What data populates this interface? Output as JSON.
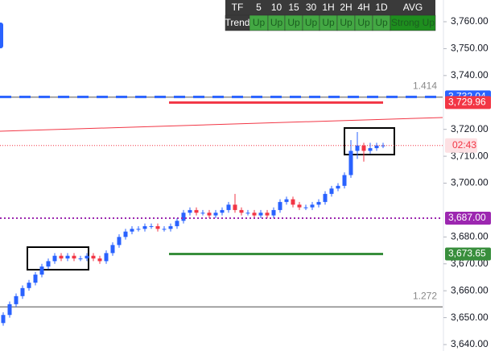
{
  "chart_data": {
    "type": "candlestick",
    "up_color": "#2962ff",
    "down_color": "#f23645",
    "ylim": [
      3640,
      3760
    ],
    "yticks": [
      {
        "value": 3760,
        "label": "3,760.00"
      },
      {
        "value": 3750,
        "label": "3,750.00"
      },
      {
        "value": 3740,
        "label": "3,740.00"
      },
      {
        "value": 3720,
        "label": "3,720.00"
      },
      {
        "value": 3710,
        "label": "3,710.00"
      },
      {
        "value": 3700,
        "label": "3,700.00"
      },
      {
        "value": 3680,
        "label": "3,680.00"
      },
      {
        "value": 3670,
        "label": "3,670.00"
      },
      {
        "value": 3660,
        "label": "3,660.00"
      },
      {
        "value": 3650,
        "label": "3,650.00"
      },
      {
        "value": 3640,
        "label": "3,640.00"
      }
    ],
    "open": [
      3648,
      3651,
      3655,
      3658,
      3661,
      3663,
      3666,
      3669,
      3671,
      3673,
      3672,
      3673,
      3672,
      3672,
      3673,
      3672,
      3671,
      3674,
      3677,
      3680,
      3682,
      3683,
      3683,
      3684,
      3684,
      3683,
      3683,
      3684,
      3686,
      3689,
      3690,
      3689,
      3689,
      3688,
      3689,
      3690,
      3692,
      3690,
      3689,
      3689,
      3688,
      3689,
      3688,
      3690,
      3693,
      3694,
      3692,
      3691,
      3691,
      3692,
      3693,
      3696,
      3698,
      3699,
      3703,
      3712,
      3714,
      3712,
      3713,
      3714
    ],
    "high": [
      3652,
      3656,
      3659,
      3662,
      3664,
      3667,
      3670,
      3672,
      3674,
      3674,
      3674,
      3674,
      3673,
      3674,
      3674,
      3673,
      3675,
      3678,
      3681,
      3683,
      3684,
      3684,
      3685,
      3685,
      3685,
      3684,
      3685,
      3687,
      3690,
      3691,
      3691,
      3690,
      3690,
      3690,
      3691,
      3693,
      3696,
      3691,
      3690,
      3690,
      3690,
      3690,
      3691,
      3694,
      3695,
      3695,
      3693,
      3692,
      3693,
      3694,
      3697,
      3699,
      3700,
      3704,
      3716,
      3719,
      3715,
      3715,
      3715,
      3715
    ],
    "low": [
      3647,
      3650,
      3654,
      3657,
      3660,
      3662,
      3665,
      3668,
      3670,
      3671,
      3671,
      3671,
      3671,
      3671,
      3671,
      3670,
      3670,
      3673,
      3676,
      3679,
      3681,
      3682,
      3682,
      3683,
      3682,
      3682,
      3682,
      3683,
      3685,
      3688,
      3688,
      3688,
      3687,
      3687,
      3688,
      3689,
      3689,
      3688,
      3688,
      3687,
      3687,
      3687,
      3687,
      3689,
      3692,
      3691,
      3690,
      3690,
      3690,
      3691,
      3692,
      3695,
      3697,
      3698,
      3702,
      3709,
      3708,
      3711,
      3712,
      3713
    ],
    "close": [
      3651,
      3655,
      3658,
      3661,
      3663,
      3666,
      3669,
      3671,
      3673,
      3672,
      3673,
      3672,
      3672,
      3673,
      3672,
      3671,
      3674,
      3677,
      3680,
      3682,
      3683,
      3683,
      3684,
      3684,
      3683,
      3683,
      3684,
      3686,
      3689,
      3690,
      3689,
      3689,
      3688,
      3689,
      3690,
      3692,
      3690,
      3689,
      3689,
      3688,
      3689,
      3688,
      3690,
      3693,
      3694,
      3692,
      3691,
      3691,
      3692,
      3693,
      3696,
      3698,
      3699,
      3703,
      3712,
      3714,
      3712,
      3713,
      3714,
      3714
    ],
    "levels": [
      {
        "value": 3732.04,
        "label": "3,732.04",
        "color": "#2962ff",
        "style": "dashed",
        "extent": "full"
      },
      {
        "value": 3729.96,
        "label": "3,729.96",
        "color": "#f23645",
        "style": "solid",
        "extent": "segment"
      },
      {
        "value": 3687,
        "label": "3,687.00",
        "color": "#9c27b0",
        "style": "dotted",
        "extent": "full"
      },
      {
        "value": 3673.65,
        "label": "3,673.65",
        "color": "#388e3c",
        "style": "solid",
        "extent": "segment"
      }
    ],
    "fib_levels": [
      {
        "ratio": 1.414,
        "value": 3732
      },
      {
        "ratio": 1.272,
        "value": 3654
      }
    ],
    "trendline": {
      "color": "#f23645",
      "values": [
        3719.3,
        3724.4
      ]
    },
    "countdown": "02:43",
    "trend_table": {
      "header": [
        "TF",
        "5",
        "10",
        "15",
        "30",
        "1H",
        "2H",
        "4H",
        "1D",
        "AVG"
      ],
      "rows": [
        [
          "Trend",
          "Up",
          "Up",
          "Up",
          "Up",
          "Up",
          "Up",
          "Up",
          "Up",
          "Strong Up"
        ]
      ]
    }
  }
}
